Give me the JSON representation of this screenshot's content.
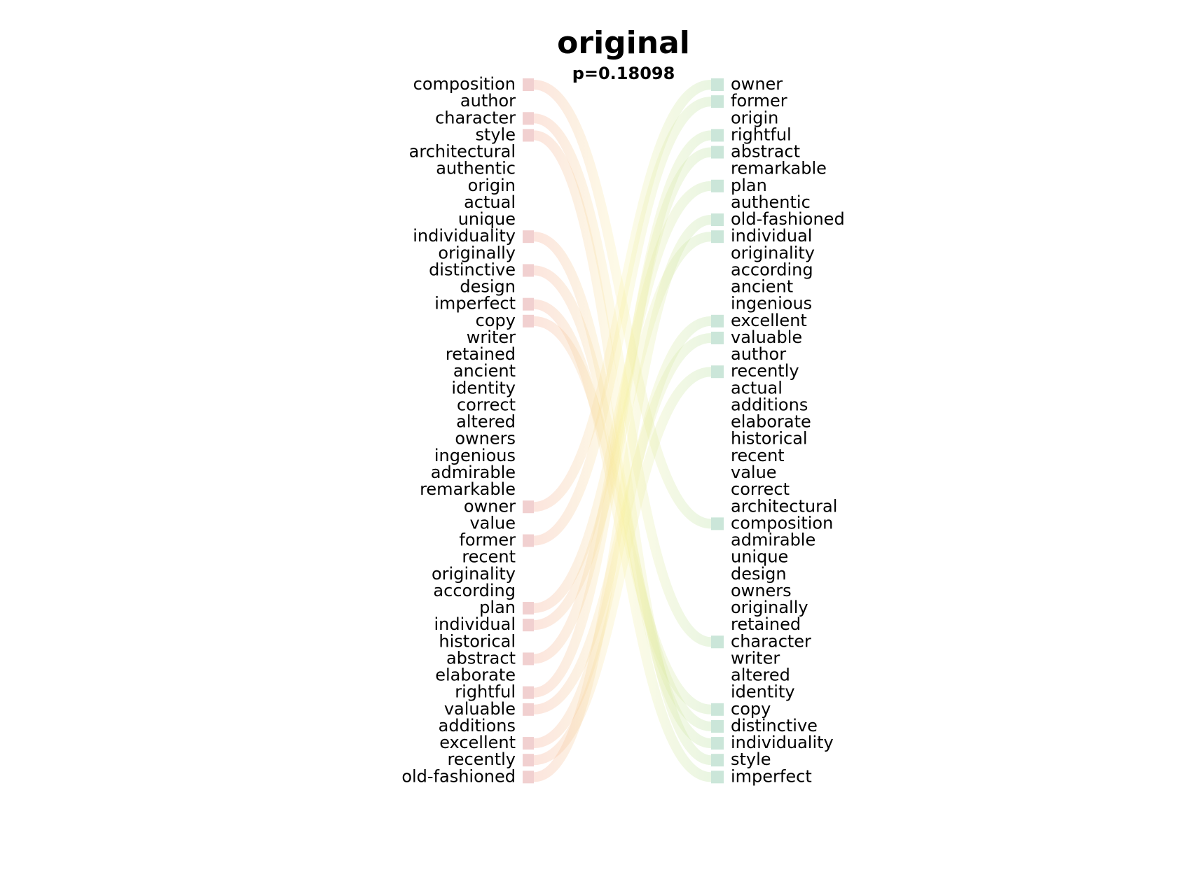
{
  "chart_data": {
    "type": "bump",
    "title": "original",
    "subtitle": "p=0.18098",
    "left_words": [
      "composition",
      "author",
      "character",
      "style",
      "architectural",
      "authentic",
      "origin",
      "actual",
      "unique",
      "individuality",
      "originally",
      "distinctive",
      "design",
      "imperfect",
      "copy",
      "writer",
      "retained",
      "ancient",
      "identity",
      "correct",
      "altered",
      "owners",
      "ingenious",
      "admirable",
      "remarkable",
      "owner",
      "value",
      "former",
      "recent",
      "originality",
      "according",
      "plan",
      "individual",
      "historical",
      "abstract",
      "elaborate",
      "rightful",
      "valuable",
      "additions",
      "excellent",
      "recently",
      "old-fashioned"
    ],
    "right_words": [
      "owner",
      "former",
      "origin",
      "rightful",
      "abstract",
      "remarkable",
      "plan",
      "authentic",
      "old-fashioned",
      "individual",
      "originality",
      "according",
      "ancient",
      "ingenious",
      "excellent",
      "valuable",
      "author",
      "recently",
      "actual",
      "additions",
      "elaborate",
      "historical",
      "recent",
      "value",
      "correct",
      "architectural",
      "composition",
      "admirable",
      "unique",
      "design",
      "owners",
      "originally",
      "retained",
      "character",
      "writer",
      "altered",
      "identity",
      "copy",
      "distinctive",
      "individuality",
      "style",
      "imperfect"
    ],
    "connections": [
      {
        "left": "composition",
        "right": "composition"
      },
      {
        "left": "character",
        "right": "character"
      },
      {
        "left": "style",
        "right": "style"
      },
      {
        "left": "individuality",
        "right": "individuality"
      },
      {
        "left": "distinctive",
        "right": "distinctive"
      },
      {
        "left": "imperfect",
        "right": "imperfect"
      },
      {
        "left": "copy",
        "right": "copy"
      },
      {
        "left": "owner",
        "right": "owner"
      },
      {
        "left": "former",
        "right": "former"
      },
      {
        "left": "plan",
        "right": "plan"
      },
      {
        "left": "individual",
        "right": "individual"
      },
      {
        "left": "abstract",
        "right": "abstract"
      },
      {
        "left": "rightful",
        "right": "rightful"
      },
      {
        "left": "valuable",
        "right": "valuable"
      },
      {
        "left": "excellent",
        "right": "excellent"
      },
      {
        "left": "recently",
        "right": "recently"
      },
      {
        "left": "old-fashioned",
        "right": "old-fashioned"
      }
    ],
    "colors": {
      "left_tick": "#e8b0b0",
      "right_tick": "#a8d5c0",
      "left_curve": "#f4a890",
      "mid_curve": "#f8f0a0",
      "right_curve": "#b8e0a0"
    },
    "legend": "none",
    "grid": false
  }
}
